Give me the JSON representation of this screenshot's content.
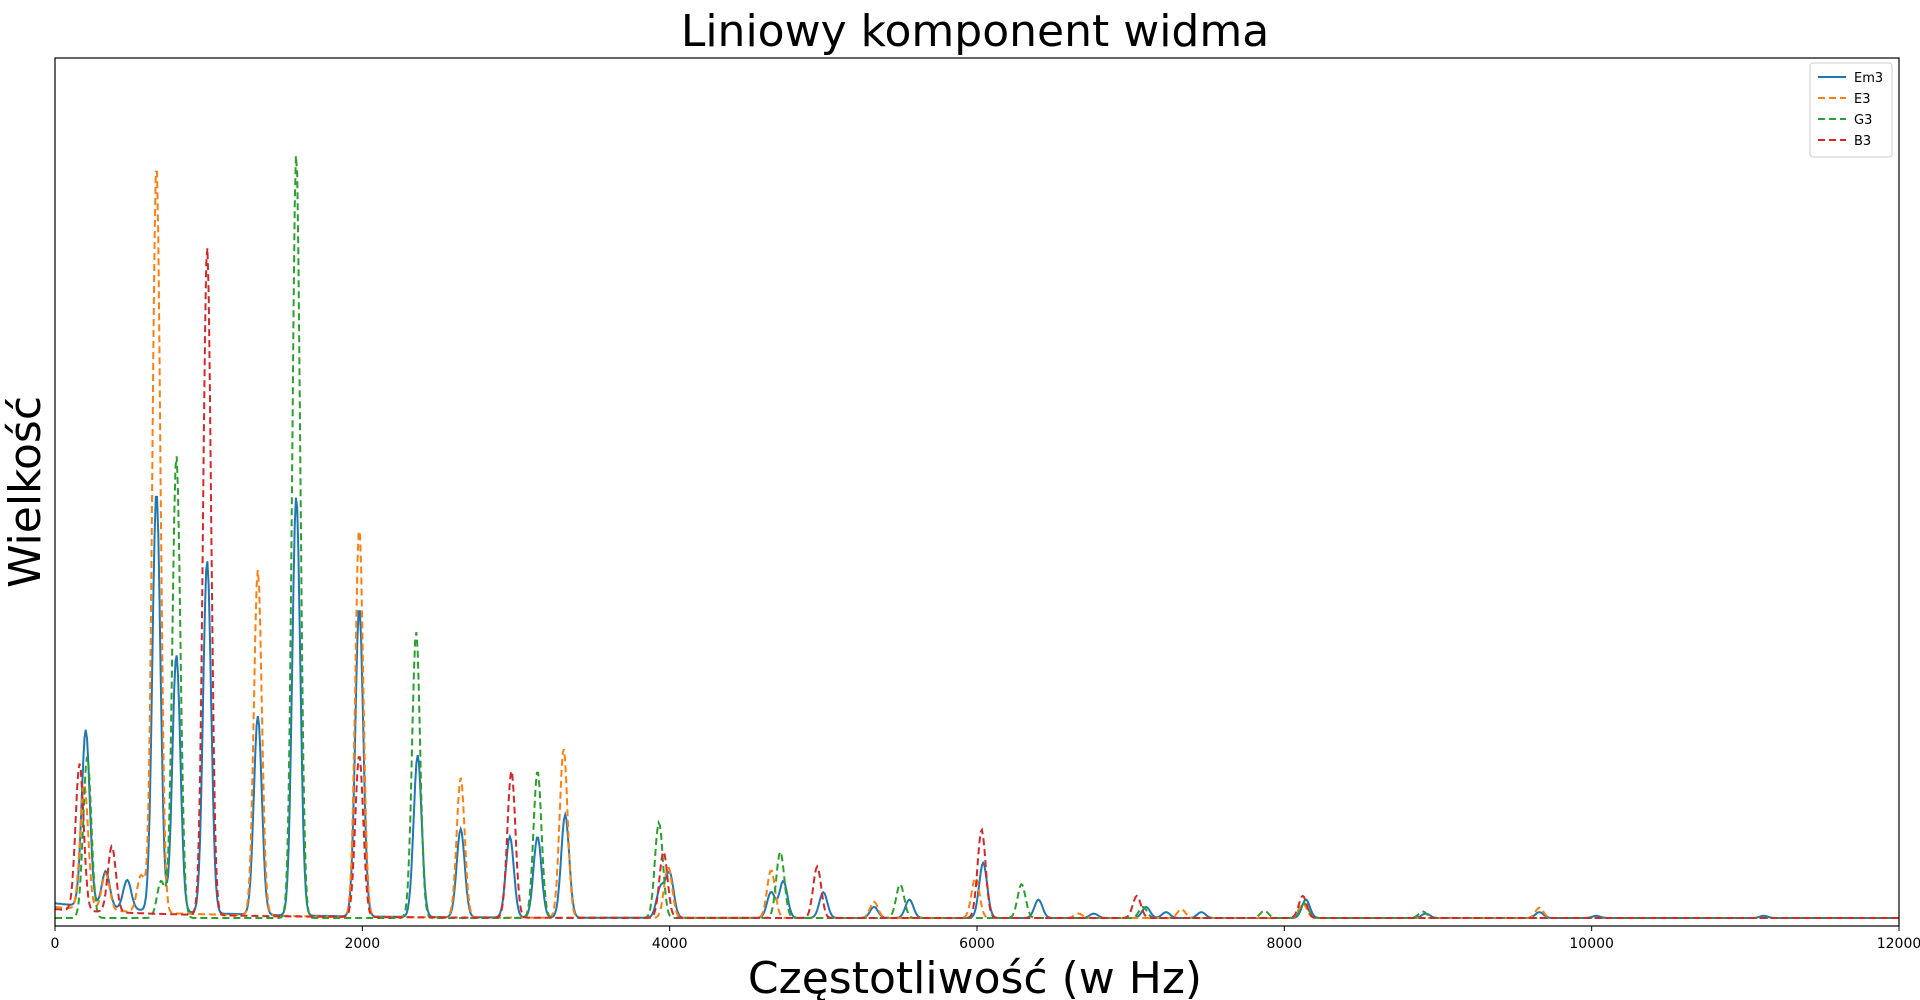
{
  "chart_data": {
    "type": "line",
    "title": "Liniowy komponent widma",
    "xlabel": "Częstotliwość (w Hz)",
    "ylabel": "Wielkość",
    "xlim": [
      0,
      12000
    ],
    "ylim": [
      0,
      1.0
    ],
    "x_ticks": [
      0,
      2000,
      4000,
      6000,
      8000,
      10000,
      12000
    ],
    "y_ticks_visible": false,
    "grid": false,
    "legend_position": "top-right",
    "series": [
      {
        "name": "Em3",
        "color": "#1f77b4",
        "style": "solid",
        "baseline": 0.02,
        "peaks": [
          [
            200,
            0.24
          ],
          [
            330,
            0.05
          ],
          [
            470,
            0.04
          ],
          [
            660,
            0.57
          ],
          [
            790,
            0.35
          ],
          [
            990,
            0.48
          ],
          [
            1320,
            0.27
          ],
          [
            1570,
            0.57
          ],
          [
            1980,
            0.42
          ],
          [
            2360,
            0.22
          ],
          [
            2640,
            0.12
          ],
          [
            2960,
            0.11
          ],
          [
            3140,
            0.11
          ],
          [
            3320,
            0.14
          ],
          [
            3940,
            0.04
          ],
          [
            4000,
            0.06
          ],
          [
            4660,
            0.035
          ],
          [
            4740,
            0.05
          ],
          [
            5000,
            0.035
          ],
          [
            5330,
            0.015
          ],
          [
            5560,
            0.025
          ],
          [
            6040,
            0.075
          ],
          [
            6400,
            0.025
          ],
          [
            6760,
            0.006
          ],
          [
            7100,
            0.015
          ],
          [
            7230,
            0.008
          ],
          [
            7460,
            0.008
          ],
          [
            8140,
            0.025
          ],
          [
            8920,
            0.006
          ],
          [
            9660,
            0.008
          ],
          [
            10030,
            0.003
          ],
          [
            11120,
            0.003
          ]
        ]
      },
      {
        "name": "E3",
        "color": "#ff7f0e",
        "style": "dashed",
        "baseline": 0.015,
        "peaks": [
          [
            190,
            0.17
          ],
          [
            330,
            0.05
          ],
          [
            560,
            0.05
          ],
          [
            660,
            1.02
          ],
          [
            1320,
            0.47
          ],
          [
            1980,
            0.53
          ],
          [
            2640,
            0.19
          ],
          [
            3310,
            0.23
          ],
          [
            3990,
            0.07
          ],
          [
            4660,
            0.065
          ],
          [
            5330,
            0.022
          ],
          [
            5990,
            0.055
          ],
          [
            6660,
            0.006
          ],
          [
            7330,
            0.012
          ],
          [
            8120,
            0.02
          ],
          [
            9660,
            0.014
          ]
        ]
      },
      {
        "name": "G3",
        "color": "#2ca02c",
        "style": "dashed",
        "baseline": 0.0,
        "peaks": [
          [
            210,
            0.22
          ],
          [
            690,
            0.05
          ],
          [
            790,
            0.63
          ],
          [
            1570,
            1.04
          ],
          [
            2350,
            0.39
          ],
          [
            3140,
            0.2
          ],
          [
            3930,
            0.13
          ],
          [
            4720,
            0.09
          ],
          [
            5500,
            0.046
          ],
          [
            6290,
            0.046
          ],
          [
            7080,
            0.015
          ],
          [
            7870,
            0.01
          ],
          [
            8130,
            0.02
          ],
          [
            8900,
            0.009
          ]
        ]
      },
      {
        "name": "B3",
        "color": "#d62728",
        "style": "dashed",
        "baseline": 0.012,
        "peaks": [
          [
            160,
            0.2
          ],
          [
            370,
            0.09
          ],
          [
            990,
            0.91
          ],
          [
            1980,
            0.22
          ],
          [
            2970,
            0.2
          ],
          [
            3960,
            0.09
          ],
          [
            4960,
            0.07
          ],
          [
            6030,
            0.12
          ],
          [
            7040,
            0.03
          ],
          [
            8120,
            0.03
          ]
        ]
      }
    ]
  }
}
